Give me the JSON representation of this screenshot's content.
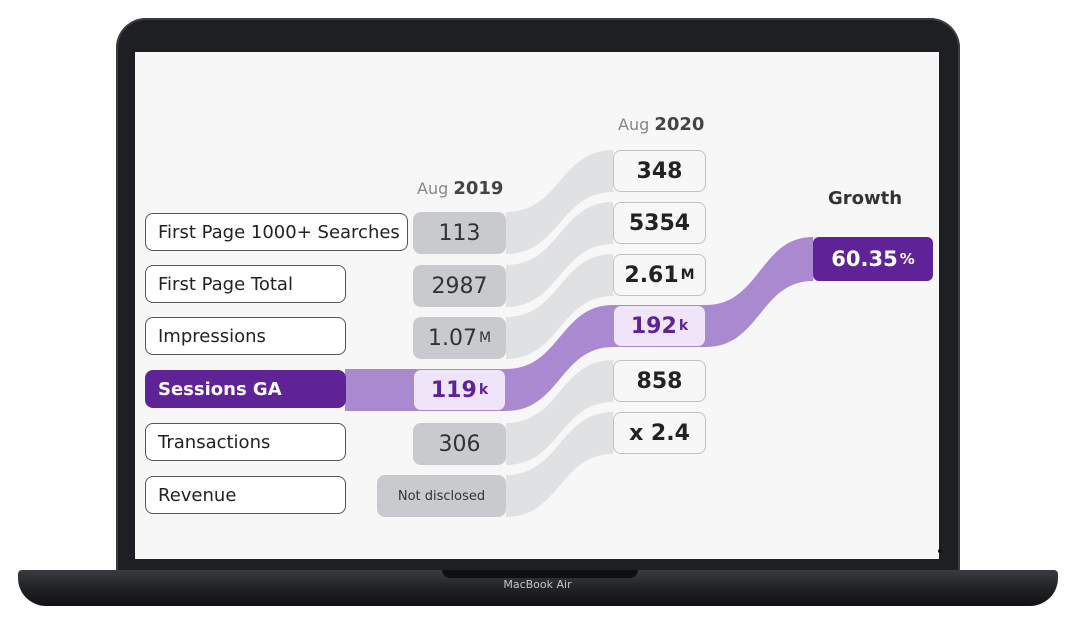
{
  "device": {
    "brand": "MacBook Air"
  },
  "headers": {
    "col2019_prefix": "Aug",
    "col2019_year": "2019",
    "col2020_prefix": "Aug",
    "col2020_year": "2020",
    "growth": "Growth"
  },
  "rows": [
    {
      "label": "First Page 1000+ Searches",
      "v2019": "113",
      "v2020": "348"
    },
    {
      "label": "First Page Total",
      "v2019": "2987",
      "v2020": "5354"
    },
    {
      "label": "Impressions",
      "v2019": "1.07",
      "v2019_unit": "M",
      "v2020": "2.61",
      "v2020_unit": "M"
    },
    {
      "label": "Sessions GA",
      "v2019": "119",
      "v2019_unit": "k",
      "v2020": "192",
      "v2020_unit": "k",
      "highlight": true
    },
    {
      "label": "Transactions",
      "v2019": "306",
      "v2020": "858"
    },
    {
      "label": "Revenue",
      "v2019": "Not disclosed",
      "v2020": "x 2.4"
    }
  ],
  "growth": {
    "value": "60.35",
    "unit": "%"
  },
  "colors": {
    "accent": "#5f2397",
    "flow_grey": "#e0e1e3",
    "flow_purple": "#a98ad1"
  }
}
